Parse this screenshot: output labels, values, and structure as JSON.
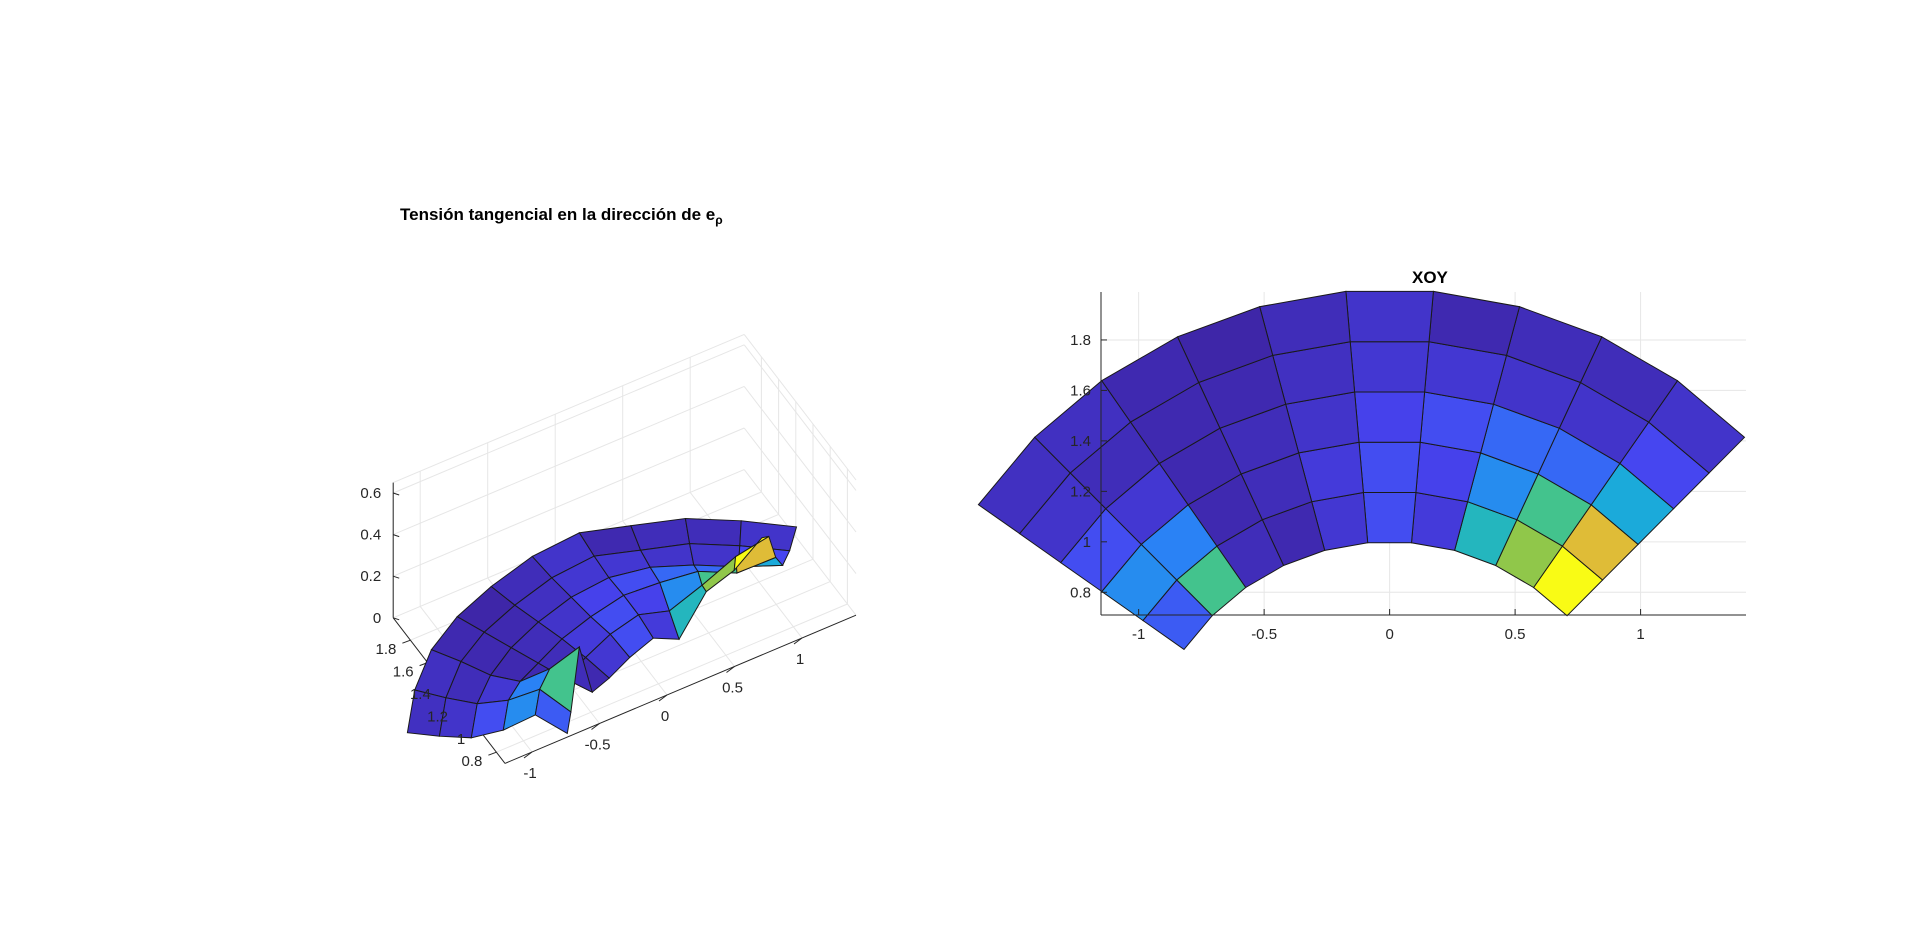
{
  "figure": {
    "background": "#ffffff",
    "axes_color": "#262626",
    "grid_color": "#e6e6e6",
    "edge_color": "#1a1a1a"
  },
  "colormap": "parula",
  "colormap_stops": [
    "#3e26a8",
    "#4743f0",
    "#2c7ef8",
    "#1aa9dc",
    "#2dc2a0",
    "#9bc840",
    "#ecb935",
    "#f9fb15"
  ],
  "chart_data": [
    {
      "type": "surface",
      "title_main": "Tensión tangencial en la dirección de e",
      "title_sub": "ρ",
      "xlabel": "",
      "ylabel": "",
      "zlabel": "",
      "xlim": [
        -1.2,
        1.4
      ],
      "ylim": [
        0.7,
        2.0
      ],
      "zlim": [
        0,
        0.6
      ],
      "xticks": [
        "-1",
        "-0.5",
        "0",
        "0.5",
        "1"
      ],
      "yticks": [
        "0.8",
        "1",
        "1.2",
        "1.4",
        "1.6",
        "1.8"
      ],
      "zticks": [
        "0",
        "0.2",
        "0.4",
        "0.6"
      ],
      "grid": true,
      "view": "3d",
      "grid_polar": {
        "r": [
          1.0,
          1.2,
          1.4,
          1.6,
          1.8,
          2.0
        ],
        "theta_deg": [
          45,
          55,
          65,
          75,
          85,
          95,
          105,
          115,
          125,
          135,
          145
        ]
      },
      "z": [
        [
          0.62,
          0.42,
          0.3,
          0.06,
          0.1,
          0.05,
          0.01,
          0.02,
          0.36,
          0.12
        ],
        [
          0.5,
          0.36,
          0.2,
          0.08,
          0.1,
          0.06,
          0.02,
          0.01,
          0.18,
          0.2
        ],
        [
          0.26,
          0.14,
          0.14,
          0.1,
          0.08,
          0.04,
          0.02,
          0.01,
          0.05,
          0.1
        ],
        [
          0.09,
          0.04,
          0.04,
          0.05,
          0.05,
          0.03,
          0.01,
          0.01,
          0.02,
          0.04
        ],
        [
          0.04,
          0.02,
          0.02,
          0.01,
          0.04,
          0.02,
          0.0,
          0.01,
          0.03,
          0.03
        ]
      ]
    },
    {
      "type": "surface-topview",
      "title": "XOY",
      "xlabel": "",
      "ylabel": "",
      "xlim": [
        -1.15,
        1.42
      ],
      "ylim": [
        0.71,
        1.99
      ],
      "xticks": [
        "-1",
        "-0.5",
        "0",
        "0.5",
        "1"
      ],
      "yticks": [
        "0.8",
        "1",
        "1.2",
        "1.4",
        "1.6",
        "1.8"
      ],
      "grid": true,
      "same_surface_as_left": true
    }
  ]
}
